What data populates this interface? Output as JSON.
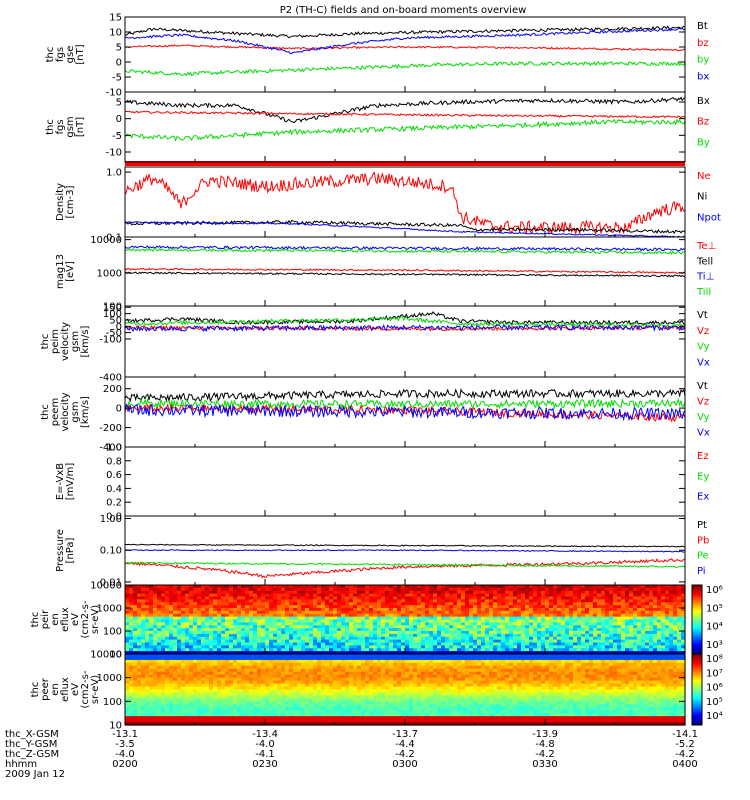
{
  "title": "P2 (TH-C) fields and on-board moments overview",
  "colors": {
    "black": "#000000",
    "red": "#ff0000",
    "green": "#00dd00",
    "blue": "#0000ff"
  },
  "chart_data": [
    {
      "type": "line",
      "id": "fgs_gse",
      "ylabel": [
        "thc",
        "fgs",
        "gse",
        "[nT]"
      ],
      "ylim": [
        -10,
        15
      ],
      "yticks": [
        {
          "v": 15,
          "t": "15"
        },
        {
          "v": 10,
          "t": "10"
        },
        {
          "v": 5,
          "t": "5"
        },
        {
          "v": 0,
          "t": "0"
        },
        {
          "v": -5,
          "t": "-5"
        },
        {
          "v": -10,
          "t": "-10"
        }
      ],
      "series": [
        {
          "name": "Bt",
          "color": "black",
          "x": [
            0,
            0.05,
            0.15,
            0.3,
            0.42,
            0.55,
            0.7,
            0.85,
            1
          ],
          "y": [
            9,
            11,
            10,
            8.5,
            9.5,
            10,
            10.5,
            11,
            11.5
          ],
          "noise": 0.5
        },
        {
          "name": "bz",
          "color": "red",
          "x": [
            0,
            0.1,
            0.3,
            0.5,
            0.7,
            1
          ],
          "y": [
            5,
            5.5,
            4.5,
            5,
            4.8,
            4
          ],
          "noise": 0.3
        },
        {
          "name": "by",
          "color": "green",
          "x": [
            0,
            0.1,
            0.25,
            0.4,
            0.55,
            0.7,
            0.85,
            1
          ],
          "y": [
            -3,
            -4,
            -3,
            -2,
            -1,
            -0.5,
            -0.5,
            -0.5
          ],
          "noise": 0.6
        },
        {
          "name": "bx",
          "color": "blue",
          "x": [
            0,
            0.1,
            0.2,
            0.3,
            0.4,
            0.5,
            0.6,
            0.7,
            0.85,
            1
          ],
          "y": [
            8,
            9,
            7,
            3,
            6,
            8,
            8.5,
            9,
            10,
            11
          ],
          "noise": 0.4
        }
      ]
    },
    {
      "type": "line",
      "id": "fgs_gsm",
      "ylabel": [
        "thc",
        "fgs",
        "gsm",
        "[nT]"
      ],
      "ylim": [
        -13,
        8
      ],
      "yticks": [
        {
          "v": 5,
          "t": "5"
        },
        {
          "v": 0,
          "t": "0"
        },
        {
          "v": -5,
          "t": "-5"
        },
        {
          "v": -10,
          "t": "-10"
        }
      ],
      "series": [
        {
          "name": "Bx",
          "color": "black",
          "x": [
            0,
            0.1,
            0.2,
            0.3,
            0.45,
            0.6,
            0.75,
            0.9,
            1
          ],
          "y": [
            5,
            4,
            4,
            -1,
            4,
            5,
            5.5,
            5,
            6
          ],
          "noise": 0.6
        },
        {
          "name": "Bz",
          "color": "red",
          "x": [
            0,
            0.3,
            0.6,
            1
          ],
          "y": [
            2,
            1.5,
            1,
            0.5
          ],
          "noise": 0.3
        },
        {
          "name": "By",
          "color": "green",
          "x": [
            0,
            0.1,
            0.3,
            0.5,
            0.7,
            0.85,
            1
          ],
          "y": [
            -5,
            -6,
            -4,
            -3,
            -2,
            -1,
            -1
          ],
          "noise": 0.7
        }
      ]
    },
    {
      "type": "line",
      "id": "density",
      "ylabel": [
        "Density",
        "[cm-3]"
      ],
      "scale": "log",
      "ylim": [
        0.1,
        1.2
      ],
      "yticks": [
        {
          "v": 1.0,
          "t": "1.0"
        },
        {
          "v": 0.1,
          "t": "0.1"
        }
      ],
      "series": [
        {
          "name": "Ne",
          "color": "red",
          "x": [
            0,
            0.05,
            0.1,
            0.15,
            0.25,
            0.35,
            0.45,
            0.58,
            0.6,
            0.65,
            0.7,
            0.8,
            0.9,
            0.95,
            1
          ],
          "y": [
            0.5,
            0.8,
            0.3,
            0.75,
            0.6,
            0.7,
            0.8,
            0.6,
            0.2,
            0.15,
            0.14,
            0.14,
            0.14,
            0.25,
            0.3
          ],
          "noise": 0.2
        },
        {
          "name": "Ni",
          "color": "black",
          "x": [
            0,
            0.3,
            0.6,
            0.62,
            0.8,
            1
          ],
          "y": [
            0.16,
            0.17,
            0.15,
            0.13,
            0.13,
            0.12
          ],
          "noise": 0.05
        },
        {
          "name": "Npot",
          "color": "blue",
          "x": [
            0,
            0.3,
            0.6,
            0.8,
            1
          ],
          "y": [
            0.17,
            0.16,
            0.12,
            0.11,
            0.1
          ],
          "noise": 0.02
        }
      ]
    },
    {
      "type": "line",
      "id": "temp",
      "ylabel": [
        "mag13",
        "[eV]"
      ],
      "scale": "log",
      "ylim": [
        100,
        12000
      ],
      "yticks": [
        {
          "v": 10000,
          "t": "10000"
        },
        {
          "v": 1000,
          "t": "1000"
        },
        {
          "v": 100,
          "t": "100"
        }
      ],
      "series": [
        {
          "name": "Te⊥",
          "color": "red",
          "x": [
            0,
            0.5,
            1
          ],
          "y": [
            1300,
            1200,
            1000
          ],
          "noise": 0.05
        },
        {
          "name": "Tell",
          "color": "black",
          "x": [
            0,
            0.5,
            1
          ],
          "y": [
            1000,
            900,
            800
          ],
          "noise": 0.05
        },
        {
          "name": "Ti⊥",
          "color": "blue",
          "x": [
            0,
            0.5,
            1
          ],
          "y": [
            6000,
            5500,
            5000
          ],
          "noise": 0.08
        },
        {
          "name": "Till",
          "color": "green",
          "x": [
            0,
            0.5,
            1
          ],
          "y": [
            5000,
            4500,
            4000
          ],
          "noise": 0.08
        }
      ]
    },
    {
      "type": "line",
      "id": "peim_vel",
      "ylabel": [
        "thc",
        "peim",
        "velocity",
        "gsm",
        "[km/s]"
      ],
      "ylim": [
        -400,
        160
      ],
      "yticks": [
        {
          "v": 150,
          "t": "150"
        },
        {
          "v": 100,
          "t": "100"
        },
        {
          "v": 50,
          "t": "50"
        },
        {
          "v": 0,
          "t": "0"
        },
        {
          "v": -50,
          "t": "-50"
        },
        {
          "v": -100,
          "t": "-100"
        },
        {
          "v": -400,
          "t": "-400"
        }
      ],
      "series": [
        {
          "name": "Vt",
          "color": "black",
          "x": [
            0,
            0.1,
            0.2,
            0.4,
            0.5,
            0.55,
            0.6,
            0.7,
            0.8,
            1
          ],
          "y": [
            40,
            60,
            30,
            40,
            80,
            100,
            40,
            30,
            30,
            30
          ],
          "noise": 15
        },
        {
          "name": "Vz",
          "color": "red",
          "x": [
            0,
            0.5,
            1
          ],
          "y": [
            -10,
            -20,
            -10
          ],
          "noise": 15
        },
        {
          "name": "Vy",
          "color": "green",
          "x": [
            0,
            0.5,
            0.6,
            1
          ],
          "y": [
            20,
            60,
            20,
            10
          ],
          "noise": 15
        },
        {
          "name": "Vx",
          "color": "blue",
          "x": [
            0,
            0.5,
            1
          ],
          "y": [
            -20,
            -10,
            -10
          ],
          "noise": 20
        }
      ]
    },
    {
      "type": "line",
      "id": "peem_vel",
      "ylabel": [
        "thc",
        "peem",
        "velocity",
        "gsm",
        "[km/s]"
      ],
      "ylim": [
        -400,
        320
      ],
      "yticks": [
        {
          "v": 200,
          "t": "200"
        },
        {
          "v": 0,
          "t": "0"
        },
        {
          "v": -200,
          "t": "-200"
        },
        {
          "v": -400,
          "t": "-400"
        }
      ],
      "series": [
        {
          "name": "Vt",
          "color": "black",
          "x": [
            0,
            0.5,
            1
          ],
          "y": [
            100,
            150,
            150
          ],
          "noise": 40
        },
        {
          "name": "Vz",
          "color": "red",
          "x": [
            0,
            0.5,
            1
          ],
          "y": [
            0,
            -20,
            -100
          ],
          "noise": 40
        },
        {
          "name": "Vy",
          "color": "green",
          "x": [
            0,
            0.5,
            1
          ],
          "y": [
            50,
            40,
            50
          ],
          "noise": 40
        },
        {
          "name": "Vx",
          "color": "blue",
          "x": [
            0,
            0.5,
            1
          ],
          "y": [
            -20,
            -40,
            -60
          ],
          "noise": 60
        }
      ]
    },
    {
      "type": "line",
      "id": "efield",
      "ylabel": [
        "E=-VxB",
        "[mV/m]"
      ],
      "ylim": [
        0,
        1
      ],
      "yticks": [
        {
          "v": 1.0,
          "t": "1.0"
        },
        {
          "v": 0.8,
          "t": "0.8"
        },
        {
          "v": 0.6,
          "t": "0.6"
        },
        {
          "v": 0.4,
          "t": "0.4"
        },
        {
          "v": 0.2,
          "t": "0.2"
        },
        {
          "v": 0,
          "t": "0.0"
        }
      ],
      "series": [
        {
          "name": "Ez",
          "color": "red",
          "x": [],
          "y": []
        },
        {
          "name": "Ey",
          "color": "green",
          "x": [],
          "y": []
        },
        {
          "name": "Ex",
          "color": "blue",
          "x": [],
          "y": []
        }
      ]
    },
    {
      "type": "line",
      "id": "pressure",
      "ylabel": [
        "Pressure",
        "[nPa]"
      ],
      "scale": "log",
      "ylim": [
        0.008,
        1.2
      ],
      "yticks": [
        {
          "v": 1.0,
          "t": "1.00"
        },
        {
          "v": 0.1,
          "t": "0.10"
        },
        {
          "v": 0.01,
          "t": "0.01"
        }
      ],
      "series": [
        {
          "name": "Pt",
          "color": "black",
          "x": [
            0,
            0.5,
            1
          ],
          "y": [
            0.15,
            0.14,
            0.13
          ],
          "noise": 0.03
        },
        {
          "name": "Pb",
          "color": "red",
          "x": [
            0,
            0.1,
            0.25,
            0.35,
            0.5,
            0.7,
            0.85,
            1
          ],
          "y": [
            0.04,
            0.03,
            0.015,
            0.02,
            0.03,
            0.035,
            0.04,
            0.05
          ],
          "noise": 0.1
        },
        {
          "name": "Pe",
          "color": "green",
          "x": [
            0,
            0.5,
            1
          ],
          "y": [
            0.04,
            0.035,
            0.03
          ],
          "noise": 0.05
        },
        {
          "name": "Pi",
          "color": "blue",
          "x": [
            0,
            0.5,
            1
          ],
          "y": [
            0.1,
            0.1,
            0.09
          ],
          "noise": 0.03
        }
      ]
    },
    {
      "type": "heatmap",
      "id": "peir",
      "ylabel": [
        "thc",
        "peir",
        "en",
        "eflux",
        "eV",
        "(cm2-s-",
        "sr-eV)"
      ],
      "ylim": [
        10,
        10000
      ],
      "yticks": [
        {
          "v": 10000,
          "t": "10000"
        },
        {
          "v": 1000,
          "t": "1000"
        },
        {
          "v": 100,
          "t": "100"
        },
        {
          "v": 10,
          "t": "10"
        }
      ],
      "colorbar": {
        "labels": [
          "10⁶",
          "10⁵",
          "10⁴",
          "10³"
        ]
      }
    },
    {
      "type": "heatmap",
      "id": "peer",
      "ylabel": [
        "thc",
        "peer",
        "en",
        "eflux",
        "eV",
        "(cm2-s-",
        "sr-eV)"
      ],
      "ylim": [
        10,
        10000
      ],
      "yticks": [
        {
          "v": 10000,
          "t": "10000"
        },
        {
          "v": 1000,
          "t": "1000"
        },
        {
          "v": 100,
          "t": "100"
        },
        {
          "v": 10,
          "t": "10"
        }
      ],
      "colorbar": {
        "labels": [
          "10⁸",
          "10⁷",
          "10⁶",
          "10⁵",
          "10⁴"
        ]
      }
    }
  ],
  "xaxis": {
    "rows": [
      {
        "label": "thc_X-GSM",
        "values": [
          "-13.1",
          "-13.4",
          "-13.7",
          "-13.9",
          "-14.1"
        ]
      },
      {
        "label": "thc_Y-GSM",
        "values": [
          "-3.5",
          "-4.0",
          "-4.4",
          "-4.8",
          "-5.2"
        ]
      },
      {
        "label": "thc_Z-GSM",
        "values": [
          "-4.0",
          "-4.1",
          "-4.2",
          "-4.2",
          "-4.2"
        ]
      },
      {
        "label": "hhmm",
        "values": [
          "0200",
          "0230",
          "0300",
          "0330",
          "0400"
        ]
      }
    ],
    "date": "2009 Jan 12"
  }
}
